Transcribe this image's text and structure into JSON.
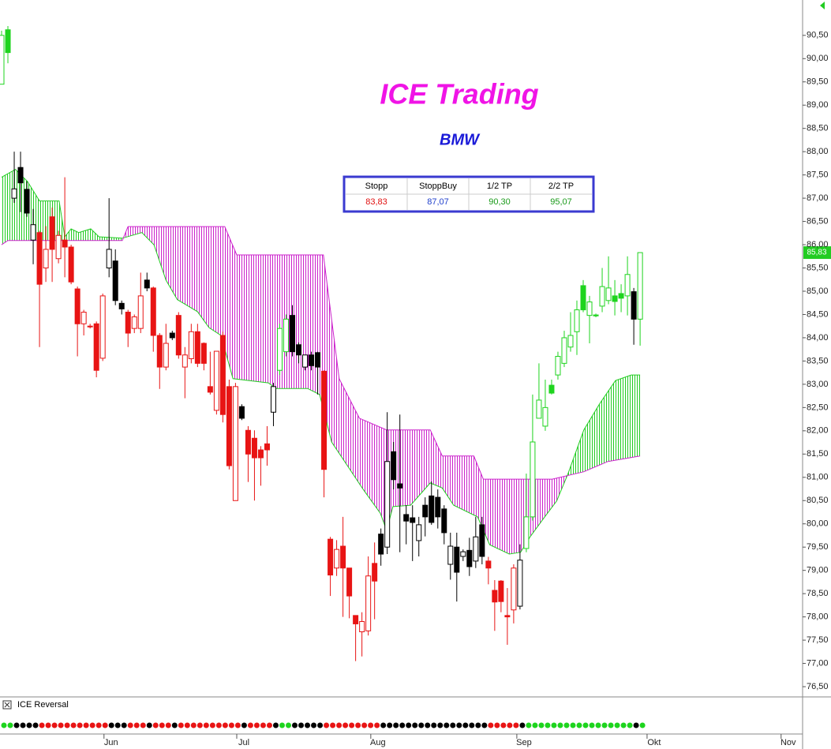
{
  "chart_data": {
    "type": "candlestick",
    "title": "ICE Trading",
    "subtitle": "BMW",
    "xlim": [
      -0.25,
      126.7
    ],
    "ylim": [
      76.28,
      91.26
    ],
    "xticks": [
      {
        "value": 16.2,
        "label": "Jun"
      },
      {
        "value": 37.2,
        "label": "Jul"
      },
      {
        "value": 58.4,
        "label": "Aug"
      },
      {
        "value": 81.5,
        "label": "Sep"
      },
      {
        "value": 102.1,
        "label": "Okt"
      },
      {
        "value": 123.3,
        "label": "Nov"
      }
    ],
    "yticks": [
      {
        "value": 76.5,
        "label": "76,50"
      },
      {
        "value": 77,
        "label": "77,00"
      },
      {
        "value": 77.5,
        "label": "77,50"
      },
      {
        "value": 78,
        "label": "78,00"
      },
      {
        "value": 78.5,
        "label": "78,50"
      },
      {
        "value": 79,
        "label": "79,00"
      },
      {
        "value": 79.5,
        "label": "79,50"
      },
      {
        "value": 80,
        "label": "80,00"
      },
      {
        "value": 80.5,
        "label": "80,50"
      },
      {
        "value": 81,
        "label": "81,00"
      },
      {
        "value": 81.5,
        "label": "81,50"
      },
      {
        "value": 82,
        "label": "82,00"
      },
      {
        "value": 82.5,
        "label": "82,50"
      },
      {
        "value": 83,
        "label": "83,00"
      },
      {
        "value": 83.5,
        "label": "83,50"
      },
      {
        "value": 84,
        "label": "84,00"
      },
      {
        "value": 84.5,
        "label": "84,50"
      },
      {
        "value": 85,
        "label": "85,00"
      },
      {
        "value": 85.5,
        "label": "85,50"
      },
      {
        "value": 86,
        "label": "86,00"
      },
      {
        "value": 86.5,
        "label": "86,50"
      },
      {
        "value": 87,
        "label": "87,00"
      },
      {
        "value": 87.5,
        "label": "87,50"
      },
      {
        "value": 88,
        "label": "88,00"
      },
      {
        "value": 88.5,
        "label": "88,50"
      },
      {
        "value": 89,
        "label": "89,00"
      },
      {
        "value": 89.5,
        "label": "89,50"
      },
      {
        "value": 90,
        "label": "90,00"
      },
      {
        "value": 90.5,
        "label": "90,50"
      }
    ],
    "series": [
      {
        "open": [
          89.45,
          90.62,
          87.0,
          87.66,
          87.19,
          86.1,
          86.26,
          85.5,
          86.6,
          85.7,
          86.1,
          85.95,
          85.05,
          84.3,
          84.25,
          84.3,
          83.56,
          85.5,
          85.65,
          84.74,
          84.55,
          84.2,
          84.2,
          85.24,
          85.07,
          84.05,
          83.37,
          84.1,
          84.48,
          83.37,
          83.55,
          84.13,
          83.88,
          82.95,
          82.44,
          84.05,
          82.95,
          80.5,
          82.52,
          82.01,
          81.84,
          81.59,
          81.72,
          82.4,
          83.3,
          83.7,
          84.48,
          83.85,
          83.37,
          83.63,
          83.68,
          83.28,
          79.67,
          79.05,
          79.52,
          79.05,
          78.03,
          77.68,
          77.7,
          79.15,
          79.78,
          79.5,
          81.55,
          80.86,
          80.2,
          80.13,
          79.64,
          80.4,
          80.6,
          80.57,
          80.32,
          79.13,
          79.5,
          79.3,
          79.43,
          79.2,
          79.98,
          79.2,
          78.57,
          78.77,
          78.03,
          78.15,
          78.23,
          79.47,
          80.15,
          82.27,
          82.1,
          82.98,
          83.2,
          83.45,
          83.8,
          84.13,
          85.12,
          84.48,
          84.49,
          84.68,
          84.8,
          84.9,
          84.95,
          84.9,
          84.99,
          84.4
        ],
        "high": [
          90.6,
          90.7,
          88.0,
          88.0,
          87.36,
          86.77,
          86.3,
          86.4,
          86.8,
          86.3,
          87.45,
          86.0,
          85.1,
          84.6,
          84.3,
          84.35,
          84.95,
          87.0,
          85.9,
          84.8,
          84.6,
          84.5,
          85.4,
          85.4,
          85.1,
          84.1,
          84.3,
          84.15,
          84.55,
          83.8,
          84.3,
          84.3,
          83.9,
          83.7,
          83.71,
          84.13,
          83.1,
          83.03,
          82.57,
          82.1,
          82.01,
          81.67,
          82.1,
          83.03,
          84.3,
          84.5,
          84.7,
          83.9,
          83.63,
          83.7,
          83.7,
          83.3,
          79.72,
          79.65,
          80.15,
          79.05,
          78.03,
          78.1,
          79.3,
          79.6,
          79.9,
          82.4,
          81.76,
          82.35,
          80.4,
          80.4,
          80.15,
          80.57,
          80.91,
          80.74,
          80.4,
          79.81,
          79.81,
          79.45,
          79.7,
          80.15,
          80.15,
          79.29,
          78.79,
          78.79,
          78.62,
          79.13,
          79.56,
          81.08,
          82.78,
          83.45,
          83.1,
          83.1,
          83.7,
          84.15,
          84.55,
          84.8,
          85.24,
          84.9,
          84.52,
          85.5,
          85.75,
          85.24,
          85.15,
          85.75,
          85.07,
          85.83
        ],
        "low": [
          89.45,
          89.9,
          86.9,
          86.7,
          86.6,
          85.58,
          83.8,
          85.2,
          85.2,
          85.6,
          85.3,
          85.15,
          83.6,
          84.05,
          84.2,
          83.15,
          83.5,
          85.3,
          84.7,
          84.5,
          83.8,
          84.1,
          84.1,
          85.0,
          83.7,
          82.9,
          83.3,
          83.95,
          83.55,
          82.7,
          83.45,
          83.37,
          83.3,
          82.78,
          82.35,
          82.18,
          81.17,
          80.5,
          82.23,
          80.9,
          80.5,
          80.82,
          81.25,
          82.1,
          83.2,
          83.6,
          83.6,
          83.45,
          83.3,
          83.3,
          82.78,
          80.57,
          78.45,
          78.88,
          78.0,
          77.97,
          77.05,
          77.15,
          77.6,
          77.95,
          79.1,
          79.35,
          80.74,
          79.39,
          79.56,
          79.2,
          79.3,
          79.73,
          79.98,
          79.9,
          79.56,
          78.8,
          78.33,
          79.2,
          78.88,
          79.05,
          79.13,
          78.7,
          77.7,
          78.1,
          77.4,
          77.86,
          78.16,
          79.39,
          80.07,
          82.27,
          82.0,
          82.78,
          83.1,
          83.37,
          83.7,
          83.63,
          84.55,
          83.88,
          84.44,
          84.55,
          84.72,
          84.48,
          84.55,
          84.48,
          83.85,
          83.83
        ],
        "close": [
          90.5,
          90.13,
          87.2,
          87.33,
          86.68,
          86.43,
          85.15,
          85.9,
          85.9,
          86.2,
          85.95,
          85.2,
          84.3,
          84.55,
          84.25,
          83.3,
          84.9,
          85.9,
          84.8,
          84.62,
          84.1,
          84.45,
          84.9,
          85.07,
          84.05,
          83.37,
          83.88,
          84.0,
          83.63,
          83.63,
          84.13,
          83.45,
          83.45,
          82.83,
          83.71,
          82.35,
          81.25,
          82.95,
          82.27,
          81.5,
          81.42,
          81.42,
          81.59,
          82.95,
          84.2,
          84.4,
          83.7,
          83.63,
          83.63,
          83.4,
          83.37,
          81.17,
          78.9,
          79.45,
          79.05,
          78.45,
          77.85,
          77.9,
          78.88,
          78.77,
          79.35,
          81.34,
          80.95,
          80.77,
          80.06,
          80.03,
          79.98,
          80.15,
          80.03,
          80.15,
          79.81,
          79.52,
          78.96,
          79.4,
          79.08,
          79.72,
          79.3,
          79.05,
          78.32,
          78.33,
          78.0,
          79.05,
          79.22,
          80.15,
          81.76,
          82.66,
          82.5,
          82.81,
          83.6,
          84.0,
          84.05,
          84.6,
          84.6,
          84.77,
          84.47,
          85.1,
          85.07,
          84.78,
          84.85,
          85.36,
          84.4,
          85.83
        ],
        "colors": [
          "#1ed41e",
          "#1ed41e",
          "#000000",
          "#000000",
          "#000000",
          "#000000",
          "#e81414",
          "#e81414",
          "#e81414",
          "#e81414",
          "#e81414",
          "#e81414",
          "#e81414",
          "#e81414",
          "#e81414",
          "#e81414",
          "#e81414",
          "#000000",
          "#000000",
          "#000000",
          "#e81414",
          "#e81414",
          "#e81414",
          "#000000",
          "#e81414",
          "#e81414",
          "#e81414",
          "#000000",
          "#e81414",
          "#e81414",
          "#e81414",
          "#e81414",
          "#e81414",
          "#e81414",
          "#e81414",
          "#e81414",
          "#e81414",
          "#e81414",
          "#000000",
          "#e81414",
          "#e81414",
          "#e81414",
          "#e81414",
          "#000000",
          "#1ed41e",
          "#1ed41e",
          "#000000",
          "#000000",
          "#000000",
          "#000000",
          "#000000",
          "#e81414",
          "#e81414",
          "#e81414",
          "#e81414",
          "#e81414",
          "#e81414",
          "#e81414",
          "#e81414",
          "#e81414",
          "#000000",
          "#000000",
          "#000000",
          "#000000",
          "#000000",
          "#000000",
          "#000000",
          "#000000",
          "#000000",
          "#000000",
          "#000000",
          "#000000",
          "#000000",
          "#000000",
          "#000000",
          "#000000",
          "#000000",
          "#e81414",
          "#e81414",
          "#e81414",
          "#e81414",
          "#e81414",
          "#000000",
          "#1ed41e",
          "#1ed41e",
          "#1ed41e",
          "#1ed41e",
          "#1ed41e",
          "#1ed41e",
          "#1ed41e",
          "#1ed41e",
          "#1ed41e",
          "#1ed41e",
          "#1ed41e",
          "#1ed41e",
          "#1ed41e",
          "#1ed41e",
          "#1ed41e",
          "#1ed41e",
          "#1ed41e",
          "#000000",
          "#1ed41e"
        ]
      }
    ],
    "last_value_label": "85,83",
    "last_label_color": "#22cc22",
    "cloud_lines": [
      {
        "color": "#22cc22",
        "x": [
          0,
          2.2,
          4.1,
          6,
          9.1,
          10,
          11,
          12.2,
          14.1,
          15.4,
          19.1,
          22.2,
          24.1,
          26,
          27.8,
          31,
          32.8,
          34.7,
          36.6,
          42.2,
          43.4,
          48.4,
          50.3,
          52.2,
          54.7,
          57.2,
          59.9,
          60.9,
          61.9,
          64.7,
          67.8,
          69.7,
          71.5,
          75.3,
          77.2,
          80.3,
          82.1,
          83.6,
          85.9,
          87.8,
          89.6,
          92.1,
          94.6,
          97.1,
          99.6,
          101
        ],
        "values": [
          87.45,
          87.62,
          87.36,
          86.94,
          86.94,
          86.17,
          86.34,
          86.26,
          86.34,
          86.17,
          86.14,
          86.26,
          86.0,
          85.24,
          84.82,
          84.56,
          84.22,
          84.05,
          83.12,
          83.03,
          82.91,
          82.91,
          82.78,
          81.76,
          81.25,
          80.74,
          80.23,
          79.86,
          80.37,
          80.4,
          80.88,
          80.77,
          80.4,
          80.15,
          79.55,
          79.35,
          79.39,
          79.72,
          80.15,
          80.49,
          81.08,
          82.02,
          82.58,
          83.08,
          83.2,
          83.2
        ]
      },
      {
        "color": "#cc22cc",
        "x": [
          0,
          1,
          19.1,
          20,
          35.3,
          37.2,
          50.9,
          53.4,
          56.6,
          60.9,
          67.8,
          69.7,
          74.7,
          76.2,
          87.1,
          92.1,
          95.9,
          101
        ],
        "values": [
          86.0,
          86.09,
          86.09,
          86.39,
          86.39,
          85.78,
          85.78,
          83.12,
          82.27,
          82.02,
          82.02,
          81.46,
          81.46,
          80.96,
          80.96,
          81.12,
          81.34,
          81.46
        ]
      }
    ],
    "indicator": {
      "title": "ICE Reversal"
    },
    "table": {
      "headers": [
        "Stopp",
        "StoppBuy",
        "1/2 TP",
        "2/2 TP"
      ],
      "values": [
        "83,83",
        "87,07",
        "90,30",
        "95,07"
      ],
      "colors": [
        "#e01010",
        "#1f3fcc",
        "#1a9a1a",
        "#1a9a1a"
      ]
    }
  }
}
